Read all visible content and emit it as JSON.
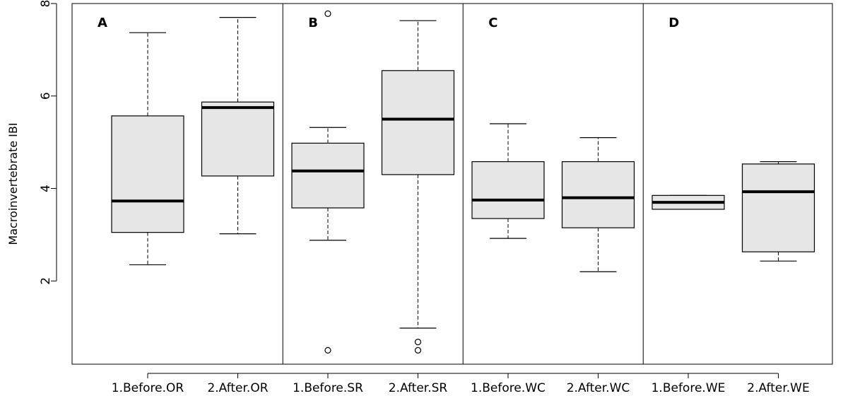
{
  "chart_data": {
    "type": "boxplot",
    "title": "",
    "xlabel": "",
    "ylabel": "Macroinvertebrate IBI",
    "ylim": [
      0.2,
      8.0
    ],
    "yticks": [
      2,
      4,
      6,
      8
    ],
    "grid": false,
    "panels": [
      "A",
      "B",
      "C",
      "D"
    ],
    "categories": [
      "1.Before.OR",
      "2.After.OR",
      "1.Before.SR",
      "2.After.SR",
      "1.Before.WC",
      "2.After.WC",
      "1.Before.WE",
      "2.After.WE"
    ],
    "boxes": [
      {
        "min": 2.35,
        "q1": 3.05,
        "median": 3.73,
        "q3": 5.57,
        "max": 7.37,
        "outliers": []
      },
      {
        "min": 3.02,
        "q1": 4.27,
        "median": 5.75,
        "q3": 5.87,
        "max": 7.7,
        "outliers": []
      },
      {
        "min": 2.88,
        "q1": 3.58,
        "median": 4.38,
        "q3": 4.98,
        "max": 5.32,
        "outliers": [
          7.78,
          0.5
        ]
      },
      {
        "min": 0.98,
        "q1": 4.3,
        "median": 5.5,
        "q3": 6.55,
        "max": 7.63,
        "outliers": [
          0.68,
          0.5
        ]
      },
      {
        "min": 2.92,
        "q1": 3.35,
        "median": 3.75,
        "q3": 4.58,
        "max": 5.4,
        "outliers": []
      },
      {
        "min": 2.2,
        "q1": 3.15,
        "median": 3.8,
        "q3": 4.58,
        "max": 5.1,
        "outliers": []
      },
      {
        "min": 3.55,
        "q1": 3.55,
        "median": 3.7,
        "q3": 3.85,
        "max": 3.85,
        "outliers": []
      },
      {
        "min": 2.43,
        "q1": 2.63,
        "median": 3.93,
        "q3": 4.53,
        "max": 4.58,
        "outliers": []
      }
    ]
  }
}
